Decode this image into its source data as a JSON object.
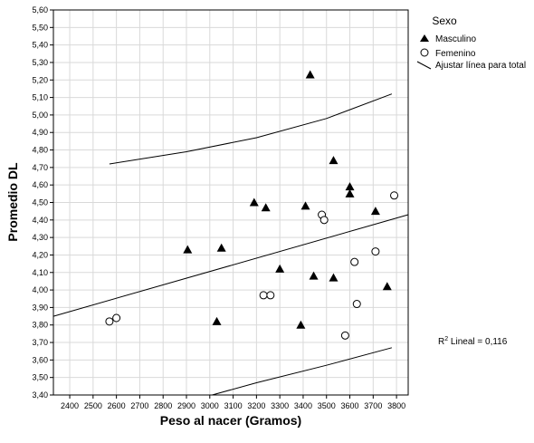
{
  "chart_data": {
    "type": "scatter",
    "xlabel": "Peso al nacer (Gramos)",
    "ylabel": "Promedio DL",
    "xlim": [
      2330,
      3850
    ],
    "ylim": [
      3.4,
      5.6
    ],
    "x_ticks": [
      2400,
      2500,
      2600,
      2700,
      2800,
      2900,
      3000,
      3100,
      3200,
      3300,
      3400,
      3500,
      3600,
      3700,
      3800
    ],
    "y_ticks": [
      "3,40",
      "3,50",
      "3,60",
      "3,70",
      "3,80",
      "3,90",
      "4,00",
      "4,10",
      "4,20",
      "4,30",
      "4,40",
      "4,50",
      "4,60",
      "4,70",
      "4,80",
      "4,90",
      "5,00",
      "5,10",
      "5,20",
      "5,30",
      "5,40",
      "5,50",
      "5,60"
    ],
    "grid": true,
    "legend": {
      "title": "Sexo",
      "position": "right",
      "entries": [
        {
          "label": "Masculino",
          "marker": "triangle"
        },
        {
          "label": "Femenino",
          "marker": "circle"
        },
        {
          "label": "Ajustar línea para total",
          "marker": "line"
        }
      ]
    },
    "series": [
      {
        "name": "Masculino",
        "marker": "triangle",
        "points": [
          [
            2905,
            4.23
          ],
          [
            3030,
            3.82
          ],
          [
            3050,
            4.24
          ],
          [
            3190,
            4.5
          ],
          [
            3240,
            4.47
          ],
          [
            3300,
            4.12
          ],
          [
            3390,
            3.8
          ],
          [
            3410,
            4.48
          ],
          [
            3430,
            5.23
          ],
          [
            3445,
            4.08
          ],
          [
            3530,
            4.74
          ],
          [
            3530,
            4.07
          ],
          [
            3600,
            4.59
          ],
          [
            3600,
            4.55
          ],
          [
            3710,
            4.45
          ],
          [
            3760,
            4.02
          ]
        ]
      },
      {
        "name": "Femenino",
        "marker": "circle",
        "points": [
          [
            2570,
            3.82
          ],
          [
            2600,
            3.84
          ],
          [
            3230,
            3.97
          ],
          [
            3260,
            3.97
          ],
          [
            3480,
            4.43
          ],
          [
            3490,
            4.4
          ],
          [
            3580,
            3.74
          ],
          [
            3620,
            4.16
          ],
          [
            3630,
            3.92
          ],
          [
            3710,
            4.22
          ],
          [
            3790,
            4.54
          ]
        ]
      }
    ],
    "fit_line": {
      "label": "Ajustar línea para total",
      "x": [
        2330,
        3850
      ],
      "y": [
        3.85,
        4.43
      ]
    },
    "confidence_upper": {
      "x": [
        2570,
        2900,
        3200,
        3500,
        3780
      ],
      "y": [
        4.72,
        4.79,
        4.87,
        4.98,
        5.12
      ]
    },
    "confidence_lower": {
      "x": [
        3010,
        3200,
        3500,
        3780
      ],
      "y": [
        3.4,
        3.47,
        3.57,
        3.67
      ]
    },
    "annotation": {
      "r2_prefix": "R",
      "r2_sup": "2",
      "r2_suffix": " Lineal = 0,116"
    }
  }
}
